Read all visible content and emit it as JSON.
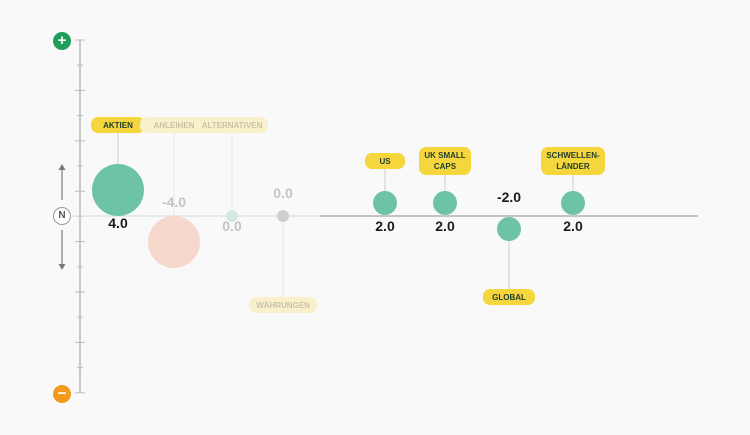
{
  "controls": {
    "plus_label": "+",
    "minus_label": "−",
    "neutral_label": "N"
  },
  "colors": {
    "positive": "#6cc4a4",
    "negative": "#f6d8cc",
    "neutral_faded": "#d6e8e6",
    "neutral_grey": "#cfcfd2",
    "label_bg": "#f5d63d",
    "label_bg_faded": "#faf1cc",
    "label_text": "#1f3d2e",
    "axis": "#9a9a9a"
  },
  "chart_data": {
    "type": "scatter",
    "title": "",
    "xlabel": "",
    "ylabel": "",
    "ylim": [
      -6,
      6
    ],
    "points": [
      {
        "label": "AKTIEN",
        "value": 4.0,
        "value_text": "4.0",
        "group": "main",
        "faded": false
      },
      {
        "label": "ANLEIHEN",
        "value": -4.0,
        "value_text": "-4.0",
        "group": "main",
        "faded": true
      },
      {
        "label": "ALTERNATIVEN",
        "value": 0.0,
        "value_text": "0.0",
        "group": "main",
        "faded": true
      },
      {
        "label": "WÄHRUNGEN",
        "value": 0.0,
        "value_text": "0.0",
        "group": "main",
        "faded": true
      },
      {
        "label": "US",
        "value": 2.0,
        "value_text": "2.0",
        "group": "sub",
        "faded": false
      },
      {
        "label": "UK SMALL\nCAPS",
        "value": 2.0,
        "value_text": "2.0",
        "group": "sub",
        "faded": false
      },
      {
        "label": "GLOBAL",
        "value": -2.0,
        "value_text": "-2.0",
        "group": "sub",
        "faded": false
      },
      {
        "label": "SCHWELLEN-\nLÄNDER",
        "value": 2.0,
        "value_text": "2.0",
        "group": "sub",
        "faded": false
      }
    ]
  }
}
